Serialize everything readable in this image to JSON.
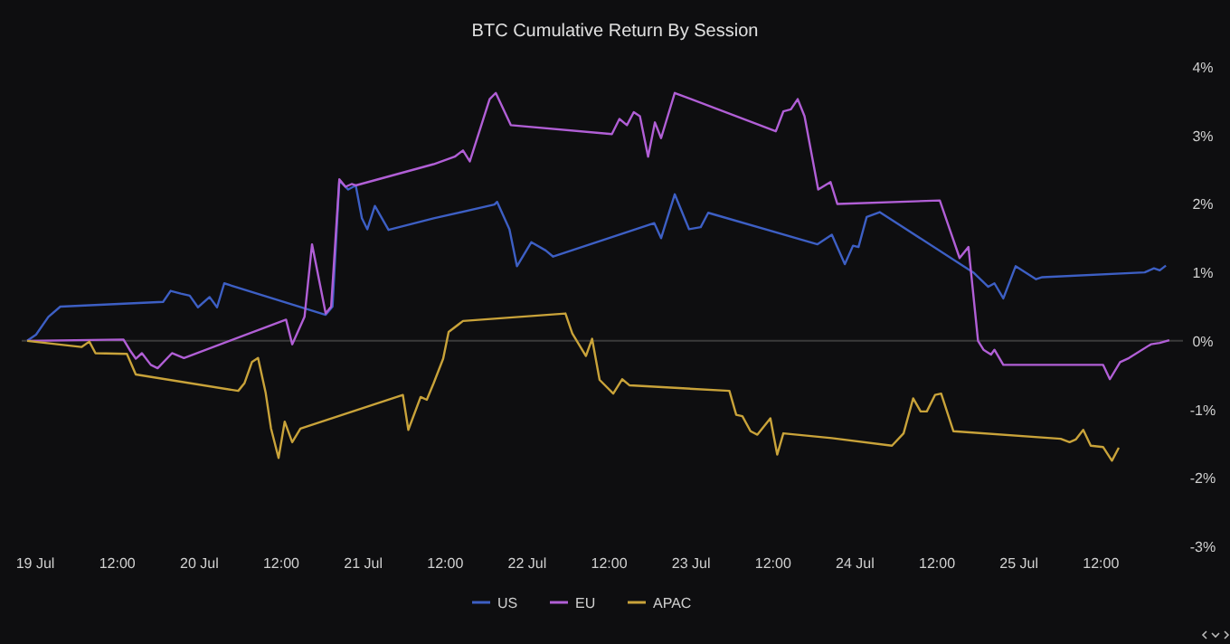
{
  "chart_data": {
    "type": "line",
    "title": "BTC Cumulative Return By Session",
    "xlim": [
      "--07-18T22:00",
      "--07-26T00:00"
    ],
    "xticks": [
      {
        "value": "--07-19T00:00",
        "label": "19 Jul"
      },
      {
        "value": "--07-19T12:00",
        "label": "12:00"
      },
      {
        "value": "--07-20T00:00",
        "label": "20 Jul"
      },
      {
        "value": "--07-20T12:00",
        "label": "12:00"
      },
      {
        "value": "--07-21T00:00",
        "label": "21 Jul"
      },
      {
        "value": "--07-21T12:00",
        "label": "12:00"
      },
      {
        "value": "--07-22T00:00",
        "label": "22 Jul"
      },
      {
        "value": "--07-22T12:00",
        "label": "12:00"
      },
      {
        "value": "--07-23T00:00",
        "label": "23 Jul"
      },
      {
        "value": "--07-23T12:00",
        "label": "12:00"
      },
      {
        "value": "--07-24T00:00",
        "label": "24 Jul"
      },
      {
        "value": "--07-24T12:00",
        "label": "12:00"
      },
      {
        "value": "--07-25T00:00",
        "label": "25 Jul"
      },
      {
        "value": "--07-25T12:00",
        "label": "12:00"
      }
    ],
    "ylim": [
      -3,
      4
    ],
    "yticks": [
      {
        "value": 4,
        "label": "4%"
      },
      {
        "value": 3,
        "label": "3%"
      },
      {
        "value": 2,
        "label": "2%"
      },
      {
        "value": 1,
        "label": "1%"
      },
      {
        "value": 0,
        "label": "0%"
      },
      {
        "value": -1,
        "label": "-1%"
      },
      {
        "value": -2,
        "label": "-2%"
      },
      {
        "value": -3,
        "label": "-3%"
      }
    ],
    "grid": false,
    "legend": "bottom",
    "ref_lines": [
      {
        "axis": "y",
        "value": 0,
        "color": "#3a3a3a"
      }
    ],
    "series": [
      {
        "name": "US",
        "color": "#3d5fc4",
        "x": [
          "--07-18T22:48",
          "--07-19T00:06",
          "--07-19T01:54",
          "--07-19T03:39",
          "--07-19T18:42",
          "--07-19T19:48",
          "--07-19T21:18",
          "--07-19T22:36",
          "--07-19T23:48",
          "--07-20T01:30",
          "--07-20T02:36",
          "--07-20T03:39",
          "--07-20T18:30",
          "--07-20T19:30",
          "--07-20T20:30",
          "--07-20T21:48",
          "--07-20T22:54",
          "--07-20T23:48",
          "--07-21T00:36",
          "--07-21T01:42",
          "--07-21T03:42",
          "--07-21T10:18",
          "--07-21T19:12",
          "--07-21T19:36",
          "--07-21T21:24",
          "--07-21T22:30",
          "--07-22T00:36",
          "--07-22T02:42",
          "--07-22T03:48",
          "--07-22T18:36",
          "--07-22T19:36",
          "--07-22T21:36",
          "--07-22T23:42",
          "--07-23T01:24",
          "--07-23T02:30",
          "--07-23T18:30",
          "--07-23T20:36",
          "--07-23T22:30",
          "--07-23T23:42",
          "--07-24T00:30",
          "--07-24T01:42",
          "--07-24T03:36",
          "--07-24T17:18",
          "--07-24T19:30",
          "--07-24T20:24",
          "--07-24T21:42",
          "--07-24T23:30",
          "--07-25T02:30",
          "--07-25T03:24",
          "--07-25T18:24",
          "--07-25T19:45",
          "--07-25T20:36",
          "--07-25T21:30"
        ],
        "values": [
          0,
          0.09,
          0.35,
          0.5,
          0.57,
          0.73,
          0.69,
          0.66,
          0.49,
          0.64,
          0.49,
          0.84,
          0.38,
          0.5,
          2.34,
          2.21,
          2.27,
          1.79,
          1.63,
          1.97,
          1.62,
          1.79,
          1.99,
          2.03,
          1.63,
          1.09,
          1.44,
          1.32,
          1.23,
          1.72,
          1.5,
          2.14,
          1.63,
          1.66,
          1.87,
          1.41,
          1.55,
          1.12,
          1.39,
          1.37,
          1.81,
          1.88,
          1.0,
          0.79,
          0.84,
          0.62,
          1.09,
          0.9,
          0.93,
          1.0,
          1.06,
          1.03,
          1.1
        ]
      },
      {
        "name": "EU",
        "color": "#b15fd6",
        "x": [
          "--07-18T22:48",
          "--07-19T12:54",
          "--07-19T13:48",
          "--07-19T14:42",
          "--07-19T15:36",
          "--07-19T16:54",
          "--07-19T17:54",
          "--07-19T20:00",
          "--07-19T21:45",
          "--07-20T12:42",
          "--07-20T13:36",
          "--07-20T15:24",
          "--07-20T16:30",
          "--07-20T18:30",
          "--07-20T19:18",
          "--07-20T20:30",
          "--07-20T21:24",
          "--07-20T22:18",
          "--07-20T22:54",
          "--07-21T10:18",
          "--07-21T13:24",
          "--07-21T14:36",
          "--07-21T15:36",
          "--07-21T18:30",
          "--07-21T19:24",
          "--07-21T21:36",
          "--07-22T12:24",
          "--07-22T13:30",
          "--07-22T14:36",
          "--07-22T15:36",
          "--07-22T16:30",
          "--07-22T17:42",
          "--07-22T18:42",
          "--07-22T19:36",
          "--07-22T21:36",
          "--07-23T12:24",
          "--07-23T13:30",
          "--07-23T14:36",
          "--07-23T15:36",
          "--07-23T16:36",
          "--07-23T18:36",
          "--07-23T20:24",
          "--07-23T21:24",
          "--07-24T12:24",
          "--07-24T15:18",
          "--07-24T16:36",
          "--07-24T18:00",
          "--07-24T18:48",
          "--07-24T19:54",
          "--07-24T20:24",
          "--07-24T21:42",
          "--07-25T12:18",
          "--07-25T13:18",
          "--07-25T14:48",
          "--07-25T16:06",
          "--07-25T19:18",
          "--07-25T20:36",
          "--07-25T22:00"
        ],
        "values": [
          0,
          0.02,
          -0.13,
          -0.26,
          -0.18,
          -0.35,
          -0.4,
          -0.18,
          -0.25,
          0.31,
          -0.05,
          0.35,
          1.41,
          0.4,
          0.5,
          2.36,
          2.25,
          2.29,
          2.27,
          2.58,
          2.69,
          2.78,
          2.62,
          3.53,
          3.62,
          3.15,
          3.02,
          3.24,
          3.15,
          3.34,
          3.28,
          2.69,
          3.19,
          2.96,
          3.62,
          3.06,
          3.35,
          3.38,
          3.53,
          3.28,
          2.21,
          2.32,
          2.0,
          2.05,
          1.21,
          1.37,
          0,
          -0.13,
          -0.2,
          -0.13,
          -0.35,
          -0.35,
          -0.56,
          -0.31,
          -0.25,
          -0.05,
          -0.03,
          0.01
        ]
      },
      {
        "name": "APAC",
        "color": "#c9a33a",
        "x": [
          "--07-18T22:48",
          "--07-19T06:45",
          "--07-19T07:54",
          "--07-19T08:48",
          "--07-19T13:24",
          "--07-19T14:42",
          "--07-20T05:42",
          "--07-20T06:36",
          "--07-20T07:42",
          "--07-20T08:36",
          "--07-20T09:42",
          "--07-20T10:30",
          "--07-20T11:36",
          "--07-20T12:30",
          "--07-20T13:36",
          "--07-20T14:48",
          "--07-21T05:48",
          "--07-21T06:36",
          "--07-21T08:24",
          "--07-21T09:18",
          "--07-21T10:18",
          "--07-21T11:42",
          "--07-21T12:30",
          "--07-21T14:36",
          "--07-22T05:36",
          "--07-22T06:36",
          "--07-22T08:36",
          "--07-22T09:30",
          "--07-22T10:36",
          "--07-22T12:36",
          "--07-22T13:54",
          "--07-22T15:00",
          "--07-23T05:36",
          "--07-23T06:36",
          "--07-23T07:30",
          "--07-23T08:42",
          "--07-23T09:42",
          "--07-23T11:36",
          "--07-23T12:36",
          "--07-23T13:30",
          "--07-23T20:36",
          "--07-24T05:24",
          "--07-24T07:06",
          "--07-24T08:30",
          "--07-24T09:36",
          "--07-24T10:30",
          "--07-24T11:42",
          "--07-24T12:36",
          "--07-24T14:24",
          "--07-25T06:06",
          "--07-25T07:24",
          "--07-25T08:18",
          "--07-25T09:24",
          "--07-25T10:30",
          "--07-25T12:18",
          "--07-25T13:36",
          "--07-25T14:36"
        ],
        "values": [
          0,
          -0.09,
          -0.01,
          -0.18,
          -0.19,
          -0.49,
          -0.73,
          -0.62,
          -0.31,
          -0.25,
          -0.75,
          -1.28,
          -1.71,
          -1.18,
          -1.48,
          -1.28,
          -0.79,
          -1.3,
          -0.82,
          -0.86,
          -0.62,
          -0.26,
          0.13,
          0.29,
          0.4,
          0.11,
          -0.22,
          0.03,
          -0.57,
          -0.77,
          -0.56,
          -0.65,
          -0.73,
          -1.08,
          -1.1,
          -1.32,
          -1.37,
          -1.13,
          -1.66,
          -1.35,
          -1.42,
          -1.53,
          -1.35,
          -0.84,
          -1.03,
          -1.03,
          -0.79,
          -0.77,
          -1.32,
          -1.43,
          -1.48,
          -1.44,
          -1.3,
          -1.53,
          -1.55,
          -1.75,
          -1.56
        ]
      }
    ]
  }
}
